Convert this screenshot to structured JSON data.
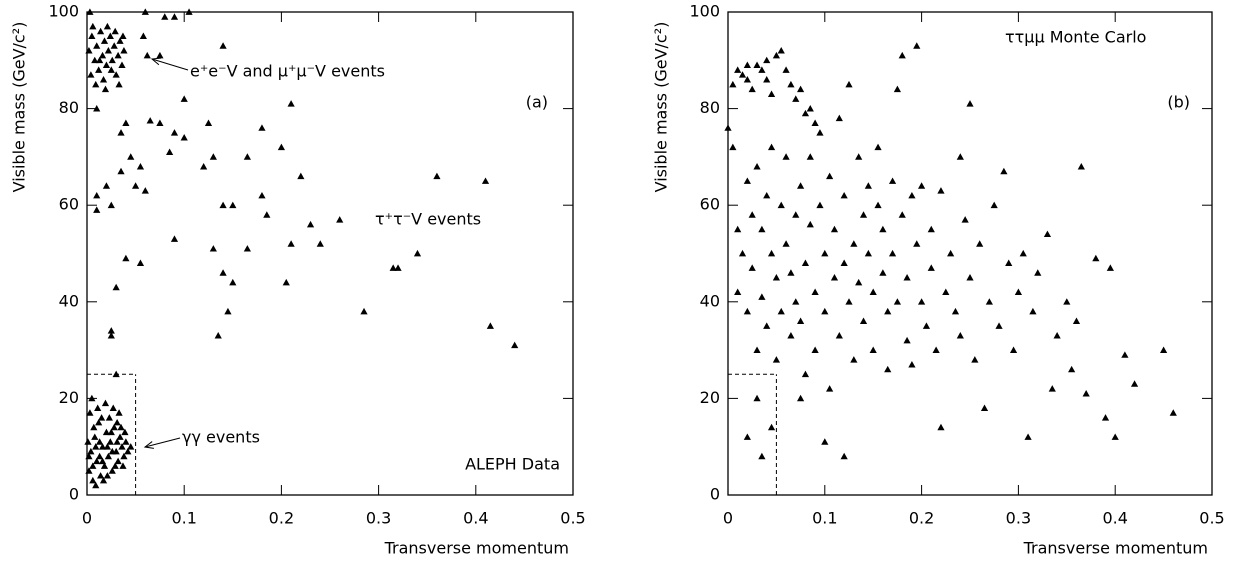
{
  "chart_data": [
    {
      "type": "scatter",
      "color": "#000000",
      "xlabel": "Transverse momentum",
      "ylabel": "Visible mass (GeV/c²)",
      "xlim": [
        0,
        0.5
      ],
      "ylim": [
        0,
        100
      ],
      "xticks": [
        0,
        0.1,
        0.2,
        0.3,
        0.4,
        0.5
      ],
      "yticks": [
        0,
        20,
        40,
        60,
        80,
        100
      ],
      "annotations": [
        "e⁺e⁻V and μ⁺μ⁻V events",
        "τ⁺τ⁻V events",
        "γγ events",
        "(a)",
        "ALEPH Data"
      ],
      "cut_box": {
        "x": [
          0,
          0.05
        ],
        "y": [
          0,
          25
        ]
      },
      "x": [
        0.002,
        0.005,
        0.008,
        0.01,
        0.012,
        0.014,
        0.016,
        0.018,
        0.02,
        0.022,
        0.024,
        0.026,
        0.028,
        0.03,
        0.032,
        0.034,
        0.036,
        0.038,
        0.004,
        0.006,
        0.009,
        0.013,
        0.017,
        0.021,
        0.025,
        0.029,
        0.033,
        0.037,
        0.003,
        0.019,
        0.002,
        0.004,
        0.006,
        0.008,
        0.01,
        0.012,
        0.014,
        0.016,
        0.018,
        0.02,
        0.022,
        0.024,
        0.026,
        0.028,
        0.03,
        0.032,
        0.034,
        0.036,
        0.038,
        0.04,
        0.003,
        0.005,
        0.007,
        0.009,
        0.011,
        0.013,
        0.015,
        0.017,
        0.019,
        0.021,
        0.023,
        0.025,
        0.027,
        0.029,
        0.031,
        0.033,
        0.035,
        0.037,
        0.039,
        0.042,
        0.001,
        0.045,
        0.002,
        0.006,
        0.009,
        0.013,
        0.016,
        0.021,
        0.026,
        0.031,
        0.06,
        0.08,
        0.09,
        0.105,
        0.058,
        0.062,
        0.075,
        0.14,
        0.1,
        0.065,
        0.075,
        0.085,
        0.09,
        0.1,
        0.125,
        0.13,
        0.12,
        0.14,
        0.15,
        0.18,
        0.165,
        0.2,
        0.21,
        0.22,
        0.18,
        0.185,
        0.26,
        0.23,
        0.24,
        0.21,
        0.205,
        0.165,
        0.13,
        0.14,
        0.15,
        0.135,
        0.145,
        0.285,
        0.315,
        0.32,
        0.34,
        0.36,
        0.41,
        0.415,
        0.44,
        0.03,
        0.025,
        0.025,
        0.04,
        0.055,
        0.06,
        0.05,
        0.045,
        0.035,
        0.02,
        0.01,
        0.01,
        0.035,
        0.04,
        0.01,
        0.025,
        0.055,
        0.09,
        0.03
      ],
      "values": [
        92,
        95,
        90,
        93,
        88,
        96,
        91,
        94,
        89,
        92,
        95,
        90,
        93,
        87,
        91,
        94,
        89,
        92,
        87,
        97,
        85,
        90,
        86,
        97,
        88,
        96,
        85,
        95,
        100,
        84,
        5,
        9,
        3,
        12,
        7,
        15,
        4,
        10,
        6,
        13,
        8,
        11,
        5,
        14,
        9,
        7,
        12,
        10,
        8,
        11,
        17,
        20,
        14,
        2,
        18,
        11,
        16,
        3,
        19,
        4,
        16,
        13,
        18,
        6,
        15,
        17,
        14,
        6,
        13,
        9,
        11,
        10,
        8,
        6,
        10,
        8,
        7,
        10,
        9,
        11,
        100,
        99,
        99,
        100,
        95,
        91,
        91,
        93,
        82,
        77.5,
        77,
        71,
        75,
        74,
        77,
        70,
        68,
        60,
        60,
        76,
        70,
        72,
        81,
        66,
        62,
        58,
        57,
        56,
        52,
        52,
        44,
        51,
        51,
        46,
        44,
        33,
        38,
        38,
        47,
        47,
        50,
        66,
        65,
        35,
        31,
        43,
        34,
        33,
        49,
        48,
        63,
        64,
        70,
        67,
        64,
        59,
        62,
        75,
        77,
        80,
        60,
        68,
        53,
        25
      ]
    },
    {
      "type": "scatter",
      "color": "#000000",
      "xlabel": "Transverse momentum",
      "ylabel": "Visible mass (GeV/c²)",
      "xlim": [
        0,
        0.5
      ],
      "ylim": [
        0,
        100
      ],
      "xticks": [
        0,
        0.1,
        0.2,
        0.3,
        0.4,
        0.5
      ],
      "yticks": [
        0,
        20,
        40,
        60,
        80,
        100
      ],
      "annotations": [
        "ττμμ Monte Carlo",
        "(b)"
      ],
      "cut_box": {
        "x": [
          0,
          0.05
        ],
        "y": [
          0,
          25
        ]
      },
      "x": [
        0.005,
        0.01,
        0.015,
        0.02,
        0.025,
        0.03,
        0.035,
        0.04,
        0.045,
        0.05,
        0.055,
        0.06,
        0.065,
        0.07,
        0.075,
        0.08,
        0.085,
        0.09,
        0.02,
        0.04,
        0.0,
        0.005,
        0.01,
        0.01,
        0.015,
        0.02,
        0.02,
        0.025,
        0.025,
        0.03,
        0.03,
        0.035,
        0.035,
        0.04,
        0.04,
        0.045,
        0.045,
        0.05,
        0.05,
        0.055,
        0.055,
        0.06,
        0.06,
        0.065,
        0.065,
        0.07,
        0.07,
        0.075,
        0.075,
        0.08,
        0.08,
        0.085,
        0.085,
        0.09,
        0.09,
        0.095,
        0.095,
        0.1,
        0.1,
        0.105,
        0.105,
        0.11,
        0.11,
        0.115,
        0.115,
        0.12,
        0.12,
        0.125,
        0.125,
        0.13,
        0.13,
        0.135,
        0.135,
        0.14,
        0.14,
        0.145,
        0.145,
        0.15,
        0.15,
        0.155,
        0.155,
        0.16,
        0.16,
        0.165,
        0.165,
        0.17,
        0.17,
        0.175,
        0.175,
        0.18,
        0.18,
        0.185,
        0.185,
        0.19,
        0.19,
        0.195,
        0.195,
        0.2,
        0.2,
        0.205,
        0.21,
        0.21,
        0.215,
        0.22,
        0.22,
        0.225,
        0.23,
        0.235,
        0.24,
        0.24,
        0.245,
        0.25,
        0.25,
        0.255,
        0.26,
        0.265,
        0.27,
        0.275,
        0.28,
        0.285,
        0.29,
        0.295,
        0.3,
        0.305,
        0.31,
        0.315,
        0.32,
        0.33,
        0.335,
        0.34,
        0.35,
        0.355,
        0.36,
        0.365,
        0.37,
        0.38,
        0.39,
        0.395,
        0.4,
        0.41,
        0.42,
        0.45,
        0.46,
        0.03,
        0.035,
        0.02,
        0.045,
        0.1,
        0.12,
        0.075
      ],
      "values": [
        85,
        88,
        87,
        86,
        84,
        89,
        88,
        86,
        83,
        91,
        92,
        88,
        85,
        82,
        84,
        79,
        80,
        77,
        89,
        90,
        76,
        72,
        55,
        42,
        50,
        65,
        38,
        47,
        58,
        68,
        30,
        55,
        41,
        62,
        35,
        72,
        50,
        45,
        28,
        60,
        38,
        52,
        70,
        33,
        46,
        58,
        40,
        64,
        36,
        48,
        25,
        56,
        70,
        42,
        30,
        60,
        75,
        50,
        38,
        66,
        22,
        45,
        55,
        78,
        33,
        62,
        48,
        40,
        85,
        52,
        28,
        70,
        44,
        58,
        36,
        64,
        50,
        42,
        30,
        60,
        72,
        46,
        55,
        38,
        26,
        65,
        50,
        84,
        40,
        58,
        91,
        45,
        32,
        62,
        27,
        93,
        52,
        40,
        64,
        35,
        55,
        47,
        30,
        63,
        14,
        42,
        50,
        38,
        70,
        33,
        57,
        81,
        45,
        28,
        52,
        18,
        40,
        60,
        35,
        67,
        48,
        30,
        42,
        50,
        12,
        38,
        46,
        54,
        22,
        33,
        40,
        26,
        36,
        68,
        21,
        49,
        16,
        47,
        12,
        29,
        23,
        30,
        17,
        20,
        8,
        12,
        14,
        11,
        8,
        20
      ]
    }
  ]
}
